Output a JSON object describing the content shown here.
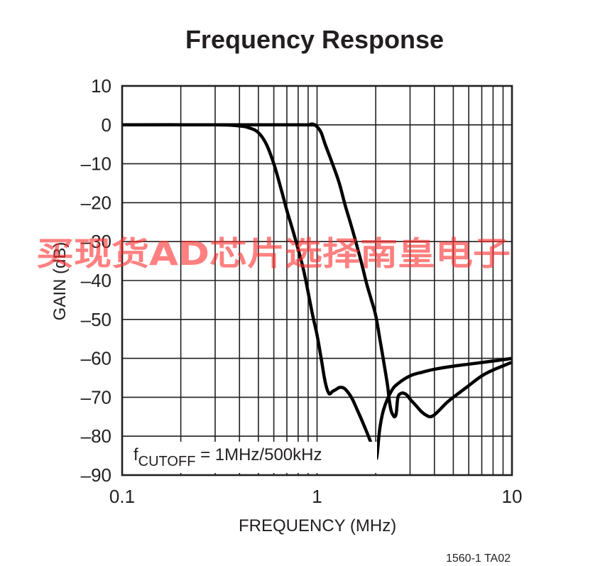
{
  "chart_data": {
    "type": "line",
    "title": "Frequency Response",
    "xlabel": "FREQUENCY (MHz)",
    "ylabel": "GAIN (dB)",
    "x_scale": "log",
    "xlim": [
      0.1,
      10
    ],
    "ylim": [
      -90,
      10
    ],
    "x_tick_labels": [
      "0.1",
      "1",
      "10"
    ],
    "x_ticks": [
      0.1,
      1,
      10
    ],
    "y_ticks": [
      10,
      0,
      -10,
      -20,
      -30,
      -40,
      -50,
      -60,
      -70,
      -80,
      -90
    ],
    "y_tick_labels": [
      "10",
      "0",
      "–10",
      "–20",
      "–30",
      "–40",
      "–50",
      "–60",
      "–70",
      "–80",
      "–90"
    ],
    "grid": true,
    "annotation": {
      "main": "f",
      "sub": "CUTOFF",
      "rest": " = 1MHz/500kHz"
    },
    "figure_id": "1560-1 TA02",
    "watermark": "买现货AD芯片选择南皇电子",
    "series": [
      {
        "x": [
          0.1,
          0.3,
          0.4,
          0.45,
          0.5,
          0.55,
          0.6,
          0.65,
          0.7,
          0.75,
          0.8,
          0.85,
          0.9,
          0.95,
          1.0,
          1.05,
          1.1,
          1.15,
          1.2,
          1.25,
          1.3,
          1.35,
          1.4,
          1.5,
          1.6,
          1.7,
          1.8,
          1.9,
          2.0,
          2.03,
          2.1,
          2.2,
          2.4,
          2.6,
          3.0,
          3.5,
          4.0,
          5.0,
          6.0,
          8.0,
          10.0
        ],
        "y": [
          0,
          0,
          -0.3,
          -0.8,
          -2,
          -5,
          -10,
          -16,
          -22,
          -27,
          -32,
          -37,
          -43,
          -49,
          -54,
          -60,
          -66,
          -69,
          -68.5,
          -68,
          -67.5,
          -67.5,
          -68,
          -70,
          -73,
          -76,
          -79,
          -82,
          -85,
          -85,
          -78,
          -73,
          -68.5,
          -66.5,
          -64.5,
          -63.5,
          -62.8,
          -62,
          -61.5,
          -60.7,
          -60
        ]
      },
      {
        "x": [
          0.1,
          0.8,
          0.9,
          0.95,
          1.0,
          1.05,
          1.1,
          1.2,
          1.3,
          1.4,
          1.5,
          1.6,
          1.7,
          1.8,
          1.9,
          2.0,
          2.1,
          2.2,
          2.3,
          2.35,
          2.4,
          2.45,
          2.5,
          2.55,
          2.6,
          2.7,
          2.8,
          2.9,
          3.0,
          3.2,
          3.4,
          3.6,
          3.8,
          4.0,
          4.3,
          4.6,
          5.0,
          6.0,
          7.0,
          8.0,
          10.0
        ],
        "y": [
          0,
          0,
          0,
          0.2,
          -0.5,
          -2,
          -5,
          -10,
          -15,
          -21,
          -26,
          -31,
          -36,
          -41,
          -45,
          -49,
          -55,
          -61,
          -67,
          -71,
          -73.5,
          -74.5,
          -75,
          -74,
          -70,
          -69,
          -69,
          -69.5,
          -70.5,
          -72,
          -73.5,
          -74.5,
          -75,
          -74.5,
          -73,
          -71.5,
          -70,
          -67,
          -64.5,
          -63,
          -61
        ]
      }
    ]
  }
}
